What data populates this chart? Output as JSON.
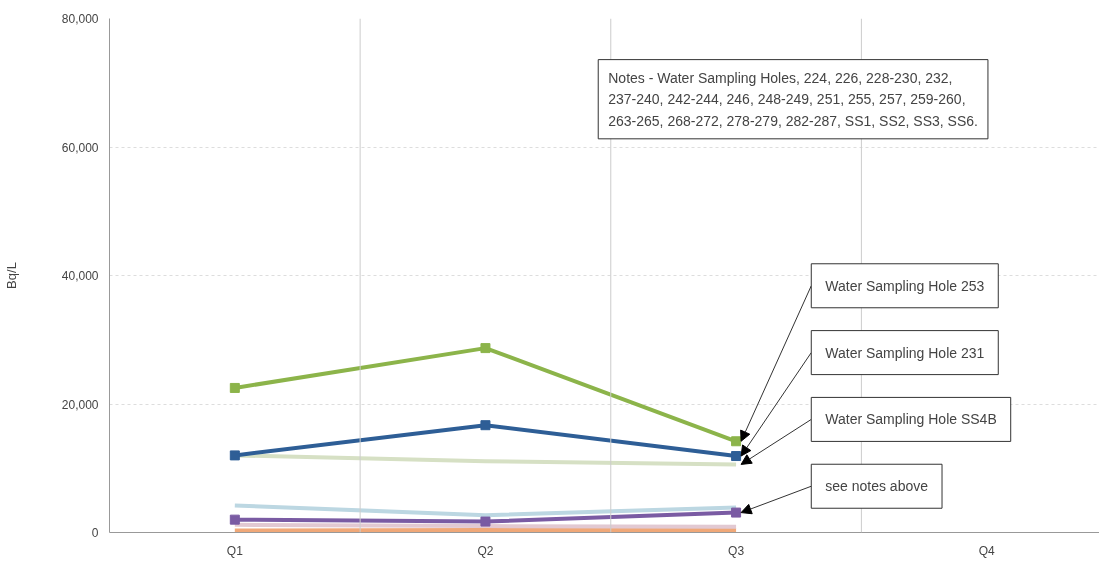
{
  "chart_data": {
    "type": "line",
    "ylabel": "Bq/L",
    "categories": [
      "Q1",
      "Q2",
      "Q3",
      "Q4"
    ],
    "ylim": [
      0,
      80000
    ],
    "yticks": [
      {
        "value": 0,
        "label": "0"
      },
      {
        "value": 20000,
        "label": "20,000"
      },
      {
        "value": 40000,
        "label": "40,000"
      },
      {
        "value": 60000,
        "label": "60,000"
      },
      {
        "value": 80000,
        "label": "80,000"
      }
    ],
    "grid": "y",
    "series": [
      {
        "color": "#f0a878",
        "values": [
          300,
          400,
          400,
          null
        ],
        "marker": "none"
      },
      {
        "color": "#e2c9d2",
        "values": [
          1200,
          1000,
          900,
          null
        ],
        "marker": "none"
      },
      {
        "color": "#bcd7e2",
        "values": [
          4200,
          2700,
          3900,
          null
        ],
        "marker": "none"
      },
      {
        "color": "#7a5ba3",
        "values": [
          2000,
          1700,
          3100,
          null
        ],
        "marker": "square"
      },
      {
        "color": "#d6e0c4",
        "values": [
          12000,
          11100,
          10600,
          null
        ],
        "marker": "none"
      },
      {
        "color": "#2e5e96",
        "values": [
          12000,
          16700,
          11900,
          null
        ],
        "marker": "square"
      },
      {
        "color": "#8cb44a",
        "values": [
          22500,
          28700,
          14200,
          null
        ],
        "marker": "square"
      }
    ],
    "annotations": [
      "Notes - Water Sampling Holes, 224, 226, 228-230, 232, 237-240, 242-244, 246, 248-249, 251, 255, 257, 259-260, 263-265, 268-272, 278-279, 282-287, SS1, SS2, SS3, SS6.",
      {
        "text": "Water Sampling Hole 253",
        "x": "Q3",
        "y": 14200
      },
      {
        "text": "Water Sampling Hole 231",
        "x": "Q3",
        "y": 11900
      },
      {
        "text": "Water Sampling Hole SS4B",
        "x": "Q3",
        "y": 10600
      },
      {
        "text": "see notes above",
        "x": "Q3",
        "y": 3100
      }
    ]
  }
}
